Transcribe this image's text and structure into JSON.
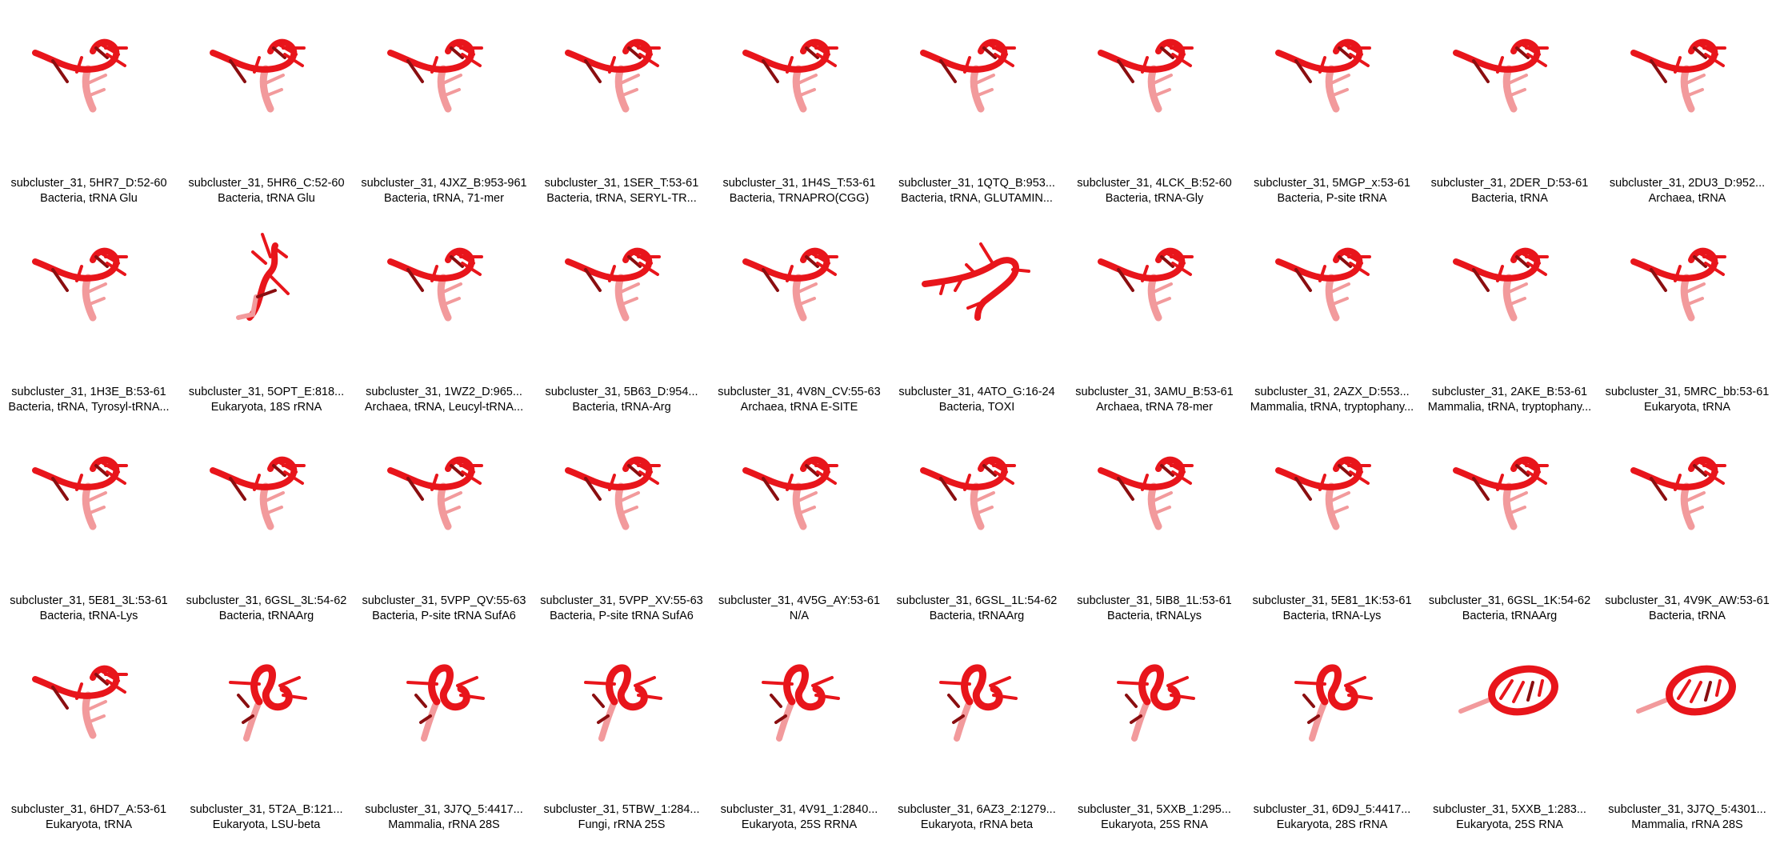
{
  "colors": {
    "backbone": "#e8151b",
    "backbone_light": "#f29a9c",
    "dark_base": "#8a0e10",
    "background": "#ffffff"
  },
  "tiles": [
    {
      "label": "subcluster_31, 5HR7_D:52-60",
      "desc": "Bacteria, tRNA Glu",
      "shape": "trna"
    },
    {
      "label": "subcluster_31, 5HR6_C:52-60",
      "desc": "Bacteria, tRNA Glu",
      "shape": "trna"
    },
    {
      "label": "subcluster_31, 4JXZ_B:953-961",
      "desc": "Bacteria, tRNA, 71-mer",
      "shape": "trna"
    },
    {
      "label": "subcluster_31, 1SER_T:53-61",
      "desc": "Bacteria, tRNA, SERYL-TR...",
      "shape": "trna"
    },
    {
      "label": "subcluster_31, 1H4S_T:53-61",
      "desc": "Bacteria, TRNAPRO(CGG)",
      "shape": "trna"
    },
    {
      "label": "subcluster_31, 1QTQ_B:953...",
      "desc": "Bacteria, tRNA, GLUTAMIN...",
      "shape": "trna"
    },
    {
      "label": "subcluster_31, 4LCK_B:52-60",
      "desc": "Bacteria, tRNA-Gly",
      "shape": "trna"
    },
    {
      "label": "subcluster_31, 5MGP_x:53-61",
      "desc": "Bacteria, P-site tRNA",
      "shape": "trna"
    },
    {
      "label": "subcluster_31, 2DER_D:53-61",
      "desc": "Bacteria, tRNA",
      "shape": "trna"
    },
    {
      "label": "subcluster_31, 2DU3_D:952...",
      "desc": "Archaea, tRNA",
      "shape": "trna"
    },
    {
      "label": "subcluster_31, 1H3E_B:53-61",
      "desc": "Bacteria, tRNA, Tyrosyl-tRNA...",
      "shape": "trna"
    },
    {
      "label": "subcluster_31, 5OPT_E:818...",
      "desc": "Eukaryota, 18S rRNA",
      "shape": "tall"
    },
    {
      "label": "subcluster_31, 1WZ2_D:965...",
      "desc": "Archaea, tRNA, Leucyl-tRNA...",
      "shape": "trna"
    },
    {
      "label": "subcluster_31, 5B63_D:954...",
      "desc": "Bacteria, tRNA-Arg",
      "shape": "trna"
    },
    {
      "label": "subcluster_31, 4V8N_CV:55-63",
      "desc": "Archaea, tRNA E-SITE",
      "shape": "trna"
    },
    {
      "label": "subcluster_31, 4ATO_G:16-24",
      "desc": "Bacteria, TOXI",
      "shape": "wide"
    },
    {
      "label": "subcluster_31, 3AMU_B:53-61",
      "desc": "Archaea, tRNA 78-mer",
      "shape": "trna"
    },
    {
      "label": "subcluster_31, 2AZX_D:553...",
      "desc": "Mammalia, tRNA, tryptophany...",
      "shape": "trna"
    },
    {
      "label": "subcluster_31, 2AKE_B:53-61",
      "desc": "Mammalia, tRNA, tryptophany...",
      "shape": "trna"
    },
    {
      "label": "subcluster_31, 5MRC_bb:53-61",
      "desc": "Eukaryota, tRNA",
      "shape": "trna"
    },
    {
      "label": "subcluster_31, 5E81_3L:53-61",
      "desc": "Bacteria, tRNA-Lys",
      "shape": "trna"
    },
    {
      "label": "subcluster_31, 6GSL_3L:54-62",
      "desc": "Bacteria, tRNAArg",
      "shape": "trna"
    },
    {
      "label": "subcluster_31, 5VPP_QV:55-63",
      "desc": "Bacteria, P-site tRNA SufA6",
      "shape": "trna"
    },
    {
      "label": "subcluster_31, 5VPP_XV:55-63",
      "desc": "Bacteria, P-site tRNA SufA6",
      "shape": "trna"
    },
    {
      "label": "subcluster_31, 4V5G_AY:53-61",
      "desc": "N/A",
      "shape": "trna"
    },
    {
      "label": "subcluster_31, 6GSL_1L:54-62",
      "desc": "Bacteria, tRNAArg",
      "shape": "trna"
    },
    {
      "label": "subcluster_31, 5IB8_1L:53-61",
      "desc": "Bacteria, tRNALys",
      "shape": "trna"
    },
    {
      "label": "subcluster_31, 5E81_1K:53-61",
      "desc": "Bacteria, tRNA-Lys",
      "shape": "trna"
    },
    {
      "label": "subcluster_31, 6GSL_1K:54-62",
      "desc": "Bacteria, tRNAArg",
      "shape": "trna"
    },
    {
      "label": "subcluster_31, 4V9K_AW:53-61",
      "desc": "Bacteria, tRNA",
      "shape": "trna"
    },
    {
      "label": "subcluster_31, 6HD7_A:53-61",
      "desc": "Eukaryota, tRNA",
      "shape": "trna"
    },
    {
      "label": "subcluster_31, 5T2A_B:121...",
      "desc": "Eukaryota, LSU-beta",
      "shape": "loop"
    },
    {
      "label": "subcluster_31, 3J7Q_5:4417...",
      "desc": "Mammalia, rRNA 28S",
      "shape": "loop"
    },
    {
      "label": "subcluster_31, 5TBW_1:284...",
      "desc": "Fungi, rRNA 25S",
      "shape": "loop"
    },
    {
      "label": "subcluster_31, 4V91_1:2840...",
      "desc": "Eukaryota, 25S RRNA",
      "shape": "loop"
    },
    {
      "label": "subcluster_31, 6AZ3_2:1279...",
      "desc": "Eukaryota, rRNA beta",
      "shape": "loop"
    },
    {
      "label": "subcluster_31, 5XXB_1:295...",
      "desc": "Eukaryota, 25S RNA",
      "shape": "loop"
    },
    {
      "label": "subcluster_31, 6D9J_5:4417...",
      "desc": "Eukaryota, 28S rRNA",
      "shape": "loop"
    },
    {
      "label": "subcluster_31, 5XXB_1:283...",
      "desc": "Eukaryota, 25S RNA",
      "shape": "oval"
    },
    {
      "label": "subcluster_31, 3J7Q_5:4301...",
      "desc": "Mammalia, rRNA 28S",
      "shape": "oval"
    }
  ]
}
